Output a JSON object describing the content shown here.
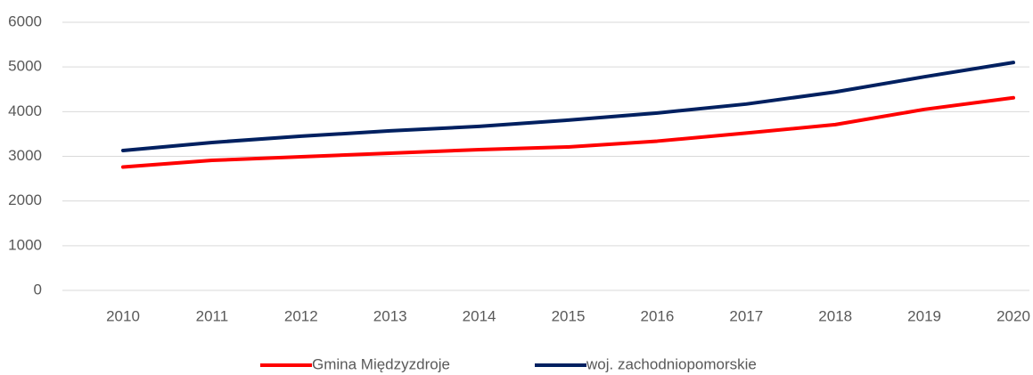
{
  "chart_data": {
    "type": "line",
    "categories": [
      "2010",
      "2011",
      "2012",
      "2013",
      "2014",
      "2015",
      "2016",
      "2017",
      "2018",
      "2019",
      "2020"
    ],
    "series": [
      {
        "name": "Gmina Międzyzdroje",
        "color": "#ff0000",
        "values": [
          2760,
          2910,
          2990,
          3070,
          3150,
          3210,
          3340,
          3520,
          3710,
          4050,
          4310
        ]
      },
      {
        "name": "woj. zachodniopomorskie",
        "color": "#002060",
        "values": [
          3130,
          3310,
          3450,
          3570,
          3670,
          3810,
          3970,
          4170,
          4440,
          4780,
          5100
        ]
      }
    ],
    "ylim": [
      0,
      6000
    ],
    "yticks": [
      0,
      1000,
      2000,
      3000,
      4000,
      5000,
      6000
    ],
    "grid": true,
    "legend": "bottom"
  }
}
